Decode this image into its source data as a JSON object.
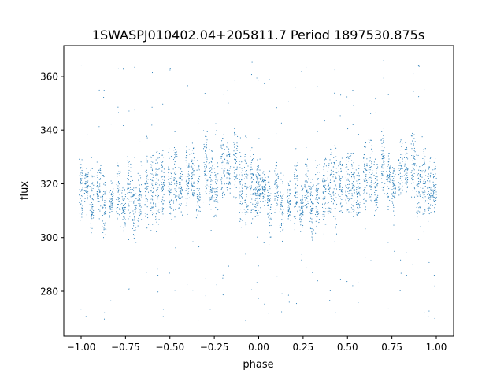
{
  "chart_data": {
    "type": "scatter",
    "title": "1SWASPJ010402.04+205811.7 Period 1897530.875s",
    "xlabel": "phase",
    "ylabel": "flux",
    "xlim": [
      -1.0975,
      1.0975
    ],
    "ylim": [
      263.3,
      371.4
    ],
    "xticks": [
      "−1.00",
      "−0.75",
      "−0.50",
      "−0.25",
      "0.00",
      "0.25",
      "0.50",
      "0.75",
      "1.00"
    ],
    "xtick_values": [
      -1,
      -0.75,
      -0.5,
      -0.25,
      0,
      0.25,
      0.5,
      0.75,
      1
    ],
    "yticks": [
      "280",
      "300",
      "320",
      "340",
      "360"
    ],
    "ytick_values": [
      280,
      300,
      320,
      340,
      360
    ],
    "grid": false,
    "legend": "none",
    "marker_color": "#1f77b4",
    "streaks_phase_flux_range": [
      [
        0.0,
        305,
        332
      ],
      [
        0.03,
        312,
        326
      ],
      [
        0.06,
        300,
        326
      ],
      [
        0.1,
        308,
        330
      ],
      [
        0.13,
        298,
        326
      ],
      [
        0.17,
        305,
        322
      ],
      [
        0.21,
        302,
        330
      ],
      [
        0.24,
        300,
        320
      ],
      [
        0.27,
        306,
        332
      ],
      [
        0.3,
        296,
        324
      ],
      [
        0.33,
        300,
        330
      ],
      [
        0.37,
        304,
        332
      ],
      [
        0.4,
        302,
        336
      ],
      [
        0.43,
        298,
        336
      ],
      [
        0.46,
        306,
        334
      ],
      [
        0.5,
        304,
        336
      ],
      [
        0.53,
        306,
        334
      ],
      [
        0.56,
        306,
        328
      ],
      [
        0.6,
        310,
        336
      ],
      [
        0.63,
        312,
        338
      ],
      [
        0.66,
        306,
        330
      ],
      [
        0.7,
        312,
        342
      ],
      [
        0.73,
        310,
        334
      ],
      [
        0.76,
        306,
        330
      ],
      [
        0.8,
        312,
        340
      ],
      [
        0.83,
        314,
        336
      ],
      [
        0.87,
        312,
        344
      ],
      [
        0.9,
        302,
        334
      ],
      [
        0.93,
        300,
        342
      ],
      [
        0.96,
        304,
        334
      ],
      [
        0.99,
        304,
        330
      ]
    ],
    "outlier_flux_range": [
      268,
      366
    ]
  }
}
